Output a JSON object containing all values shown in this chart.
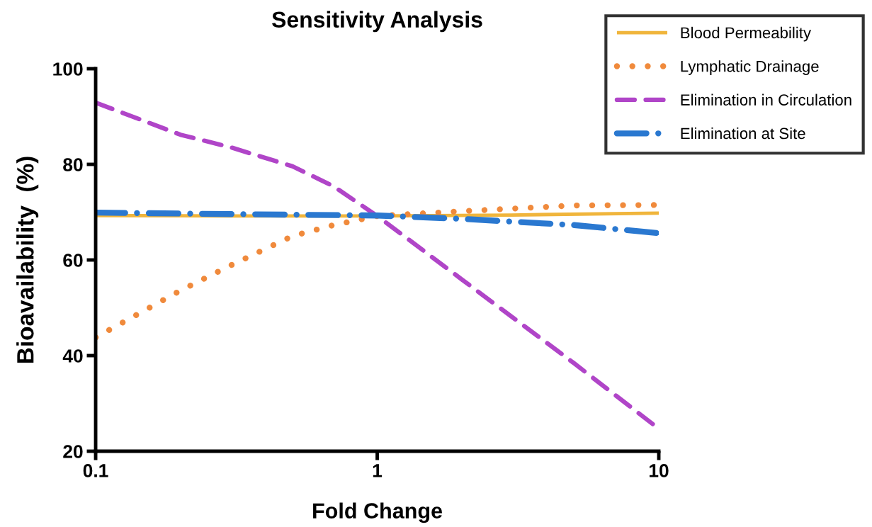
{
  "chart_data": {
    "type": "line",
    "title": "Sensitivity Analysis",
    "xlabel": "Fold Change",
    "ylabel": "Bioavailability  (%)",
    "log": "x",
    "xlim": [
      0.1,
      10
    ],
    "xticks": [
      0.1,
      1,
      10
    ],
    "ylim": [
      20,
      100
    ],
    "yticks": [
      20,
      40,
      60,
      80,
      100
    ],
    "grid": false,
    "legend": "top right",
    "marker": "none",
    "series": [
      {
        "name": "Blood Permeability",
        "color": "#f0b53c",
        "line_style": "solid",
        "x": [
          0.1,
          0.3,
          1,
          3,
          10
        ],
        "values": [
          69.3,
          69.2,
          69.2,
          69.4,
          69.8
        ]
      },
      {
        "name": "Lymphatic Drainage",
        "color": "#f08a3c",
        "line_style": "dotted",
        "x": [
          0.1,
          0.2,
          0.3,
          0.5,
          0.7,
          1,
          2,
          5,
          10
        ],
        "values": [
          43.8,
          53.6,
          58.8,
          65.0,
          67.3,
          69.2,
          70.2,
          71.4,
          71.5
        ]
      },
      {
        "name": "Elimination in Circulation",
        "color": "#b045c8",
        "line_style": "dashed",
        "x": [
          0.1,
          0.2,
          0.3,
          0.5,
          0.7,
          1,
          2,
          5,
          10
        ],
        "values": [
          92.9,
          86.2,
          83.6,
          79.6,
          75.4,
          69.2,
          55.9,
          38.4,
          24.7
        ]
      },
      {
        "name": "Elimination at Site",
        "color": "#2a78d0",
        "line_style": "dashdot",
        "x": [
          0.1,
          0.3,
          1,
          2,
          5,
          10
        ],
        "values": [
          69.9,
          69.6,
          69.3,
          68.6,
          67.3,
          65.6
        ]
      }
    ]
  }
}
